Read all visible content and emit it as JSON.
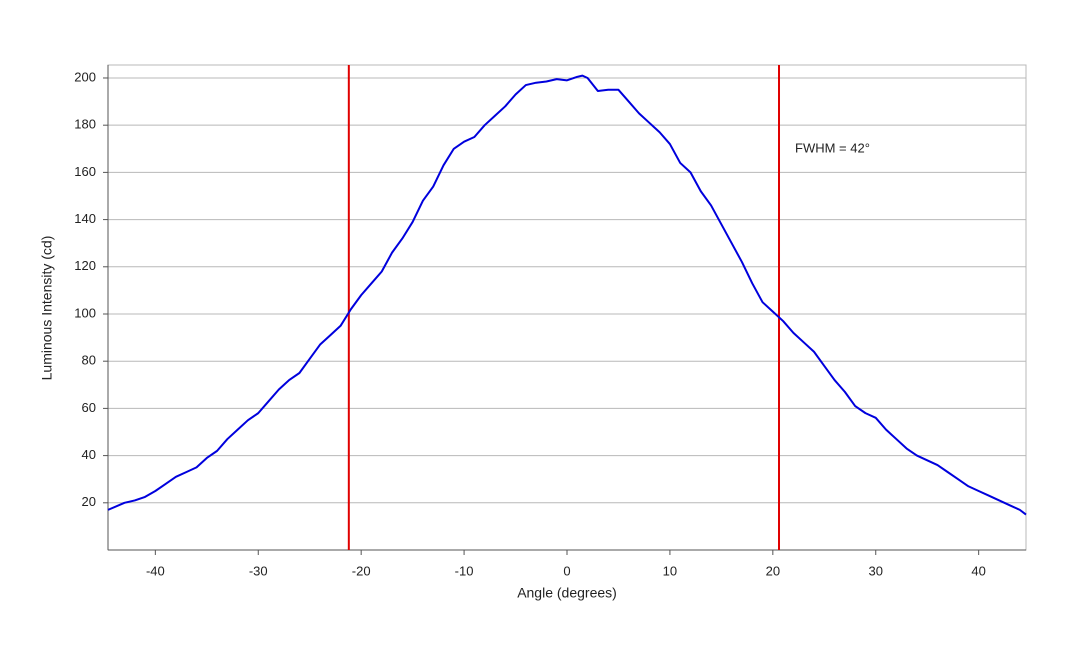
{
  "chart_data": {
    "type": "line",
    "x_label": "Angle (degrees)",
    "y_label": "Luminous Intensity (cd)",
    "x": [
      -44.6,
      -43,
      -42,
      -41,
      -40,
      -39,
      -38,
      -37,
      -36,
      -35,
      -34,
      -33,
      -32,
      -31,
      -30,
      -29,
      -28,
      -27,
      -26,
      -25,
      -24,
      -23,
      -22,
      -21,
      -20,
      -19,
      -18,
      -17,
      -16,
      -15,
      -14,
      -13,
      -12,
      -11,
      -10,
      -9,
      -8,
      -7,
      -6,
      -5,
      -4,
      -3,
      -2,
      -1,
      0,
      1,
      1.5,
      2,
      3,
      4,
      5,
      6,
      7,
      8,
      9,
      10,
      11,
      12,
      13,
      14,
      15,
      16,
      17,
      18,
      19,
      20,
      21,
      22,
      23,
      24,
      25,
      26,
      27,
      28,
      29,
      30,
      31,
      32,
      33,
      34,
      35,
      36,
      37,
      38,
      39,
      40,
      41,
      42,
      43,
      44,
      44.6
    ],
    "series": [
      {
        "color": "#0000dd",
        "values": [
          17,
          20,
          21,
          22.5,
          25,
          28,
          31,
          33,
          35,
          39,
          42,
          47,
          51,
          55,
          58,
          63,
          68,
          72,
          75,
          81,
          87,
          91,
          95,
          102,
          108,
          113,
          118,
          126,
          132,
          139,
          148,
          154,
          163,
          170,
          173,
          175,
          180,
          184,
          188,
          193,
          197,
          198,
          198.5,
          199.5,
          199,
          200.5,
          201,
          200,
          194.5,
          195,
          195,
          190,
          185,
          181,
          177,
          172,
          164,
          160,
          152,
          146,
          138,
          130,
          122,
          113,
          105,
          101,
          97,
          92,
          88,
          84,
          78,
          72,
          67,
          61,
          58,
          56,
          51,
          47,
          43,
          40,
          38,
          36,
          33,
          30,
          27,
          25,
          23,
          21,
          19,
          17,
          15
        ]
      }
    ],
    "vlines": [
      -21.2,
      20.6
    ],
    "vline_color": "#e00000",
    "annotation": "FWHM = 42°",
    "xlim": [
      -44.6,
      44.6
    ],
    "xticks": [
      -40,
      -30,
      -20,
      -10,
      0,
      10,
      20,
      30,
      40
    ],
    "ylim": [
      0,
      205.5
    ],
    "yticks": [
      20,
      40,
      60,
      80,
      100,
      120,
      140,
      160,
      180,
      200
    ],
    "grid": true
  }
}
